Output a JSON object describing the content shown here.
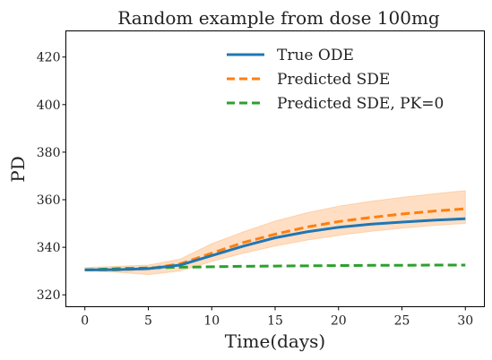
{
  "chart_data": {
    "type": "line",
    "title": "Random example from dose 100mg",
    "xlabel": "Time(days)",
    "ylabel": "PD",
    "xlim": [
      -1.5,
      31.5
    ],
    "ylim": [
      315,
      431
    ],
    "xticks": [
      0,
      5,
      10,
      15,
      20,
      25,
      30
    ],
    "yticks": [
      320,
      340,
      360,
      380,
      400,
      420
    ],
    "grid": false,
    "legend_position": "top-right",
    "x": [
      0,
      2.5,
      5,
      7.5,
      10,
      12.5,
      15,
      17.5,
      20,
      22.5,
      25,
      27.5,
      30
    ],
    "series": [
      {
        "name": "True ODE",
        "color": "#1f77b4",
        "style": "solid",
        "values": [
          330.5,
          330.6,
          331,
          332.5,
          336.5,
          340.5,
          344,
          346.5,
          348.4,
          349.7,
          350.6,
          351.4,
          352
        ]
      },
      {
        "name": "Predicted SDE",
        "color": "#ff7f0e",
        "style": "dashed",
        "values": [
          330.5,
          330.5,
          331,
          333,
          337.5,
          342,
          345.5,
          348.5,
          350.8,
          352.5,
          354,
          355.2,
          356.2
        ],
        "band_lower": [
          330,
          329.5,
          328.5,
          330,
          334,
          337.5,
          340.5,
          343,
          345,
          346.7,
          348,
          349.2,
          350
        ],
        "band_upper": [
          331.5,
          332,
          332.5,
          335,
          341.5,
          346.5,
          351,
          354.5,
          357.3,
          359.3,
          361,
          362.5,
          363.8
        ],
        "band_color": "#ffd8b8"
      },
      {
        "name": "Predicted SDE, PK=0",
        "color": "#2ca02c",
        "style": "dashed",
        "values": [
          330.5,
          331,
          331.3,
          331.6,
          331.8,
          332,
          332.1,
          332.2,
          332.3,
          332.4,
          332.4,
          332.5,
          332.5
        ]
      }
    ]
  }
}
